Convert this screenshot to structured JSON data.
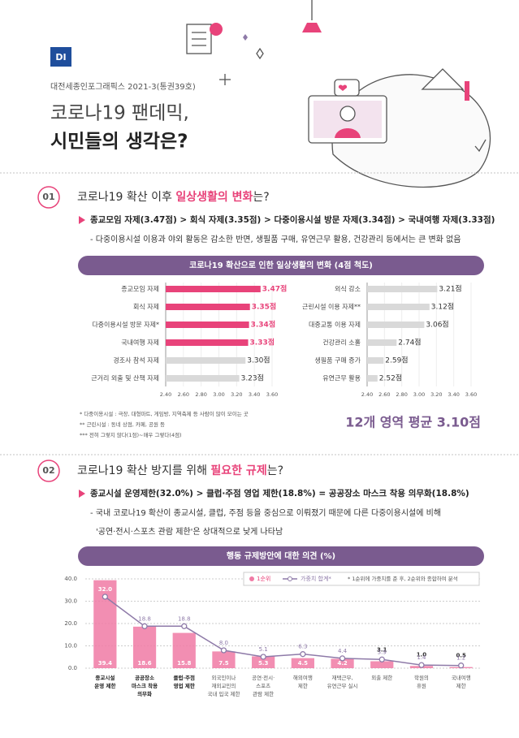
{
  "header": {
    "logo": "DI",
    "issue": "대전세종인포그래픽스 2021-3(통권39호)",
    "title_line1": "코로나19 팬데믹,",
    "title_line2": "시민들의 생각은?"
  },
  "section1": {
    "number": "01",
    "heading": {
      "pre": "코로나19 확산 이후 ",
      "highlight": "일상생활의 변화",
      "post": "는?"
    },
    "bullet": "종교모임 자제(3.47점) > 회식 자제(3.35점) > 다중이용시설 방문 자제(3.34점) > 국내여행 자제(3.33점)",
    "note": "- 다중이용시설 이용과 야외 활동은 감소한 반면, 생필품 구매, 유연근무 활용, 건강관리 등에서는 큰 변화 없음",
    "footnotes": [
      "* 다중이용시설 : 극장, 대형마트, 게임방, 지역축제 등 사람이 많이 모이는 곳",
      "** 근린시설 : 동네 상점, 카페, 공원 등",
      "*** 전혀 그렇지 않다(1점)~매우 그렇다(4점)"
    ],
    "average": "12개 영역 평균 3.10점"
  },
  "section2": {
    "number": "02",
    "heading": {
      "pre": "코로나19 확산 방지를 위해 ",
      "highlight": "필요한 규제",
      "post": "는?"
    },
    "bullet": "종교시설 운영제한(32.0%) > 클럽·주점 영업 제한(18.8%) = 공공장소 마스크 착용 의무화(18.8%)",
    "note_lines": [
      "- 국내 코로나19 확산이 종교시설, 클럽, 주점 등을 중심으로 이뤄졌기 때문에 다른 다중이용시설에 비해",
      "'공연·전시·스포츠 관람 제한'은 상대적으로 낮게 나타남"
    ]
  },
  "chart_data": [
    {
      "type": "hbar",
      "title": "코로나19 확산으로 인한 일상생활의 변화 (4점 척도)",
      "categories": [
        "종교모임 자제",
        "회식 자제",
        "다중이용시설 방문 자제*",
        "국내여행 자제",
        "경조사 참석 자제",
        "근거리 외출 및 산책 자제"
      ],
      "values": [
        3.47,
        3.35,
        3.34,
        3.33,
        3.3,
        3.23
      ],
      "value_labels": [
        "3.47점",
        "3.35점",
        "3.34점",
        "3.33점",
        "3.30점",
        "3.23점"
      ],
      "colors": [
        "#e8437a",
        "#e8437a",
        "#e8437a",
        "#e8437a",
        "#d9d9d9",
        "#d9d9d9"
      ],
      "xlim": [
        2.4,
        3.6
      ],
      "xticks": [
        {
          "value": 2.4,
          "label": "2.40"
        },
        {
          "value": 2.6,
          "label": "2.60"
        },
        {
          "value": 2.8,
          "label": "2.80"
        },
        {
          "value": 3.0,
          "label": "3.00"
        },
        {
          "value": 3.2,
          "label": "3.20"
        },
        {
          "value": 3.4,
          "label": "3.40"
        },
        {
          "value": 3.6,
          "label": "3.60"
        }
      ]
    },
    {
      "type": "hbar",
      "categories": [
        "외식 감소",
        "근린시설 이용 자제**",
        "대중교통 이용 자제",
        "건강관리 소홀",
        "생필품 구매 증가",
        "유연근무 활용"
      ],
      "values": [
        3.21,
        3.12,
        3.06,
        2.74,
        2.59,
        2.52
      ],
      "value_labels": [
        "3.21점",
        "3.12점",
        "3.06점",
        "2.74점",
        "2.59점",
        "2.52점"
      ],
      "colors": [
        "#d9d9d9",
        "#d9d9d9",
        "#d9d9d9",
        "#d9d9d9",
        "#d9d9d9",
        "#d9d9d9"
      ],
      "xlim": [
        2.4,
        3.6
      ],
      "xticks": [
        {
          "value": 2.4,
          "label": "2.40"
        },
        {
          "value": 2.6,
          "label": "2.60"
        },
        {
          "value": 2.8,
          "label": "2.80"
        },
        {
          "value": 3.0,
          "label": "3.00"
        },
        {
          "value": 3.2,
          "label": "3.20"
        },
        {
          "value": 3.4,
          "label": "3.40"
        },
        {
          "value": 3.6,
          "label": "3.60"
        }
      ]
    },
    {
      "type": "bar_line",
      "title": "행동 규제방안에 대한 의견 (%)",
      "note": "* 1순위에 가중치를 준 후, 2순위와 종합하여 분석",
      "categories": [
        [
          "종교시설",
          "운영 제한"
        ],
        [
          "공공장소",
          "마스크 착용",
          "의무화"
        ],
        [
          "클럽·주점",
          "영업 제한"
        ],
        [
          "외국인이나",
          "재외교민의",
          "국내 입국 제한"
        ],
        [
          "공연·전시·",
          "스포츠",
          "관람 제한"
        ],
        [
          "해외여행",
          "제한"
        ],
        [
          "재택근무,",
          "유연근무 실시"
        ],
        [
          "외출 제한"
        ],
        [
          "학원의",
          "휴원"
        ],
        [
          "국내여행",
          "제한"
        ]
      ],
      "series": [
        {
          "name": "1순위",
          "type": "bar",
          "color": "#f07aa5",
          "values": [
            39.4,
            18.6,
            15.8,
            7.5,
            5.3,
            4.5,
            4.2,
            3.1,
            1.0,
            0.5
          ],
          "value_labels": [
            "39.4",
            "18.6",
            "15.8",
            "7.5",
            "5.3",
            "4.5",
            "4.2",
            "3.1",
            "1.0",
            "0.5"
          ]
        },
        {
          "name": "가중치 합계*",
          "type": "line",
          "color": "#8e7aa8",
          "values": [
            32.0,
            18.8,
            18.8,
            8.0,
            5.1,
            6.3,
            4.4,
            3.9,
            1.4,
            1.2
          ],
          "value_labels": [
            "32.0",
            "18.8",
            "18.8",
            "8.0",
            "5.1",
            "6.3",
            "4.4",
            "3.9",
            "1.4",
            "1.2"
          ]
        }
      ],
      "ylim": [
        0,
        40
      ],
      "yticks": [
        {
          "value": 0,
          "label": "0.0"
        },
        {
          "value": 10,
          "label": "10.0"
        },
        {
          "value": 20,
          "label": "20.0"
        },
        {
          "value": 30,
          "label": "30.0"
        },
        {
          "value": 40,
          "label": "40.0"
        }
      ]
    }
  ]
}
